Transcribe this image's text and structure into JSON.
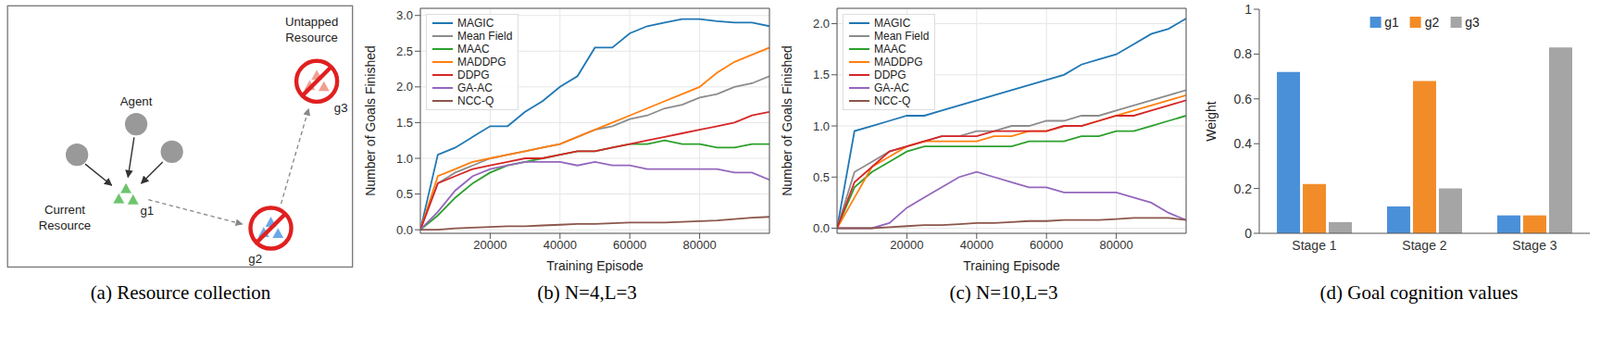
{
  "diagram": {
    "title": "(a) Resource collection",
    "agent_label": "Agent",
    "current_resource": "Current Resource",
    "untapped_resource": "Untapped Resource",
    "goals": [
      "g1",
      "g2",
      "g3"
    ]
  },
  "chart_data": [
    {
      "type": "line",
      "title": "(b) N=4,L=3",
      "x_label": "Training Episode",
      "y_label": "Number of Goals Finished",
      "x": [
        0,
        5000,
        10000,
        15000,
        20000,
        25000,
        30000,
        35000,
        40000,
        45000,
        50000,
        55000,
        60000,
        65000,
        70000,
        75000,
        80000,
        85000,
        90000,
        95000,
        100000
      ],
      "xlim": [
        0,
        100000
      ],
      "xticks": [
        20000,
        40000,
        60000,
        80000
      ],
      "ylim": [
        -0.05,
        3.1
      ],
      "yticks": [
        {
          "value": 0,
          "label": "0.0"
        },
        {
          "value": 0.5,
          "label": "0.5"
        },
        {
          "value": 1,
          "label": "1.0"
        },
        {
          "value": 1.5,
          "label": "1.5"
        },
        {
          "value": 2,
          "label": "2.0"
        },
        {
          "value": 2.5,
          "label": "2.5"
        },
        {
          "value": 3,
          "label": "3.0"
        }
      ],
      "grid": true,
      "legend": "upper left",
      "series": [
        {
          "name": "MAGIC",
          "color": "#1f77b4",
          "values": [
            0,
            1.05,
            1.15,
            1.3,
            1.45,
            1.45,
            1.65,
            1.8,
            2.0,
            2.15,
            2.55,
            2.55,
            2.75,
            2.85,
            2.9,
            2.95,
            2.95,
            2.92,
            2.9,
            2.9,
            2.85
          ]
        },
        {
          "name": "Mean Field",
          "color": "#8c8c8c",
          "values": [
            0,
            0.65,
            0.8,
            0.9,
            1.0,
            1.05,
            1.1,
            1.15,
            1.2,
            1.3,
            1.4,
            1.45,
            1.55,
            1.6,
            1.7,
            1.75,
            1.85,
            1.9,
            2.0,
            2.05,
            2.15
          ]
        },
        {
          "name": "MAAC",
          "color": "#2ca02c",
          "values": [
            0,
            0.2,
            0.45,
            0.65,
            0.8,
            0.9,
            0.95,
            1.0,
            1.05,
            1.1,
            1.1,
            1.15,
            1.2,
            1.2,
            1.25,
            1.2,
            1.2,
            1.15,
            1.15,
            1.2,
            1.2
          ]
        },
        {
          "name": "MADDPG",
          "color": "#ff7f0e",
          "values": [
            0,
            0.75,
            0.85,
            0.95,
            1.0,
            1.05,
            1.1,
            1.15,
            1.2,
            1.3,
            1.4,
            1.5,
            1.6,
            1.7,
            1.8,
            1.9,
            2.0,
            2.2,
            2.35,
            2.45,
            2.55
          ]
        },
        {
          "name": "DDPG",
          "color": "#d62728",
          "values": [
            0,
            0.65,
            0.75,
            0.85,
            0.9,
            0.95,
            1.0,
            1.0,
            1.05,
            1.1,
            1.1,
            1.15,
            1.2,
            1.25,
            1.3,
            1.35,
            1.4,
            1.45,
            1.5,
            1.6,
            1.65
          ]
        },
        {
          "name": "GA-AC",
          "color": "#9467bd",
          "values": [
            0,
            0.25,
            0.55,
            0.75,
            0.85,
            0.9,
            0.95,
            0.95,
            0.95,
            0.9,
            0.95,
            0.9,
            0.9,
            0.85,
            0.85,
            0.85,
            0.85,
            0.85,
            0.8,
            0.8,
            0.7
          ]
        },
        {
          "name": "NCC-Q",
          "color": "#8c564b",
          "values": [
            0,
            0.0,
            0.02,
            0.03,
            0.04,
            0.05,
            0.05,
            0.06,
            0.07,
            0.08,
            0.08,
            0.09,
            0.1,
            0.1,
            0.1,
            0.11,
            0.12,
            0.13,
            0.15,
            0.17,
            0.18
          ]
        }
      ]
    },
    {
      "type": "line",
      "title": "(c) N=10,L=3",
      "x_label": "Training Episode",
      "y_label": "Number of Goals Finished",
      "x": [
        0,
        5000,
        10000,
        15000,
        20000,
        25000,
        30000,
        35000,
        40000,
        45000,
        50000,
        55000,
        60000,
        65000,
        70000,
        75000,
        80000,
        85000,
        90000,
        95000,
        100000
      ],
      "xlim": [
        0,
        100000
      ],
      "xticks": [
        20000,
        40000,
        60000,
        80000
      ],
      "ylim": [
        -0.05,
        2.15
      ],
      "yticks": [
        {
          "value": 0,
          "label": "0.0"
        },
        {
          "value": 0.5,
          "label": "0.5"
        },
        {
          "value": 1,
          "label": "1.0"
        },
        {
          "value": 1.5,
          "label": "1.5"
        },
        {
          "value": 2,
          "label": "2.0"
        }
      ],
      "grid": true,
      "legend": "upper left",
      "series": [
        {
          "name": "MAGIC",
          "color": "#1f77b4",
          "values": [
            0,
            0.95,
            1.0,
            1.05,
            1.1,
            1.1,
            1.15,
            1.2,
            1.25,
            1.3,
            1.35,
            1.4,
            1.45,
            1.5,
            1.6,
            1.65,
            1.7,
            1.8,
            1.9,
            1.95,
            2.05
          ]
        },
        {
          "name": "Mean Field",
          "color": "#8c8c8c",
          "values": [
            0,
            0.55,
            0.65,
            0.75,
            0.8,
            0.85,
            0.9,
            0.9,
            0.95,
            0.95,
            1.0,
            1.0,
            1.05,
            1.05,
            1.1,
            1.1,
            1.15,
            1.2,
            1.25,
            1.3,
            1.35
          ]
        },
        {
          "name": "MAAC",
          "color": "#2ca02c",
          "values": [
            0,
            0.4,
            0.55,
            0.65,
            0.75,
            0.8,
            0.8,
            0.8,
            0.8,
            0.8,
            0.8,
            0.85,
            0.85,
            0.85,
            0.9,
            0.9,
            0.95,
            0.95,
            1.0,
            1.05,
            1.1
          ]
        },
        {
          "name": "MADDPG",
          "color": "#ff7f0e",
          "values": [
            0,
            0.3,
            0.6,
            0.7,
            0.8,
            0.85,
            0.85,
            0.85,
            0.85,
            0.9,
            0.9,
            0.95,
            0.95,
            1.0,
            1.0,
            1.05,
            1.1,
            1.15,
            1.2,
            1.25,
            1.3
          ]
        },
        {
          "name": "DDPG",
          "color": "#d62728",
          "values": [
            0,
            0.45,
            0.6,
            0.75,
            0.8,
            0.85,
            0.9,
            0.9,
            0.9,
            0.95,
            0.95,
            0.95,
            0.95,
            1.0,
            1.0,
            1.05,
            1.1,
            1.1,
            1.15,
            1.2,
            1.25
          ]
        },
        {
          "name": "GA-AC",
          "color": "#9467bd",
          "values": [
            0,
            0.0,
            0.0,
            0.05,
            0.2,
            0.3,
            0.4,
            0.5,
            0.55,
            0.5,
            0.45,
            0.4,
            0.4,
            0.35,
            0.35,
            0.35,
            0.35,
            0.3,
            0.25,
            0.15,
            0.08
          ]
        },
        {
          "name": "NCC-Q",
          "color": "#8c564b",
          "values": [
            0,
            0.0,
            0.0,
            0.01,
            0.02,
            0.03,
            0.03,
            0.04,
            0.05,
            0.05,
            0.06,
            0.07,
            0.07,
            0.08,
            0.08,
            0.08,
            0.09,
            0.1,
            0.1,
            0.1,
            0.08
          ]
        }
      ]
    },
    {
      "type": "bar",
      "title": "(d) Goal cognition values",
      "y_label": "Weight",
      "categories": [
        "Stage 1",
        "Stage 2",
        "Stage 3"
      ],
      "ylim": [
        0,
        1
      ],
      "yticks": [
        0,
        0.2,
        0.4,
        0.6,
        0.8,
        1
      ],
      "grid": false,
      "legend": "upper center",
      "series": [
        {
          "name": "g1",
          "color": "#4a90d9",
          "values": [
            0.72,
            0.12,
            0.08
          ]
        },
        {
          "name": "g2",
          "color": "#f28c28",
          "values": [
            0.22,
            0.68,
            0.08
          ]
        },
        {
          "name": "g3",
          "color": "#a5a5a5",
          "values": [
            0.05,
            0.2,
            0.83
          ]
        }
      ]
    }
  ]
}
